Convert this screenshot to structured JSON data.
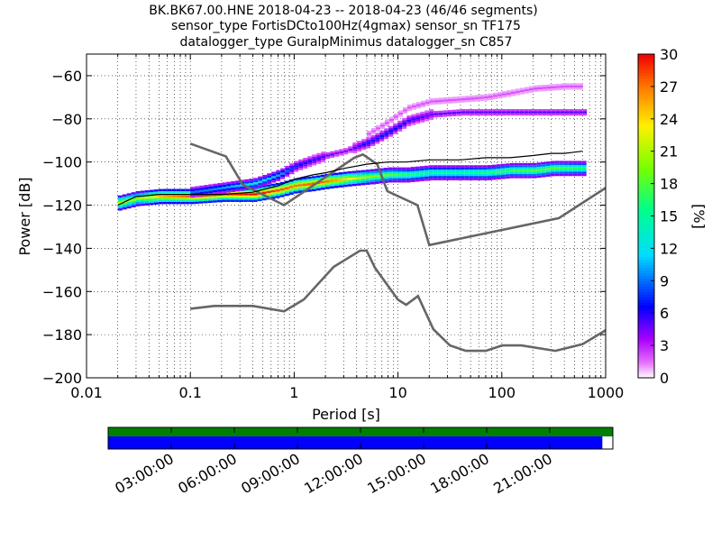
{
  "header": {
    "title_line1": "BK.BK67.00.HNE   2018-04-23 -- 2018-04-23  (46/46 segments)",
    "title_line2": "sensor_type FortisDCto100Hz(4gmax) sensor_sn TF175",
    "title_line3": "datalogger_type GuralpMinimus datalogger_sn C857"
  },
  "chart_data": [
    {
      "type": "heatmap",
      "xlabel": "Period [s]",
      "ylabel": "Power [dB]",
      "x_scale": "log",
      "xlim": [
        0.01,
        1000
      ],
      "ylim": [
        -200,
        -50
      ],
      "x_ticks": [
        0.01,
        0.1,
        1,
        10,
        100,
        1000
      ],
      "x_tick_labels": [
        "0.01",
        "0.1",
        "1",
        "10",
        "100",
        "1000"
      ],
      "y_ticks": [
        -200,
        -180,
        -160,
        -140,
        -120,
        -100,
        -80,
        -60
      ],
      "y_tick_labels": [
        "−200",
        "−180",
        "−160",
        "−140",
        "−120",
        "−100",
        "−80",
        "−60"
      ],
      "grid": true,
      "colorbar": {
        "label": "[%]",
        "range": [
          0,
          30
        ],
        "ticks": [
          0,
          3,
          6,
          9,
          12,
          15,
          18,
          21,
          24,
          27,
          30
        ]
      },
      "noise_model_high": {
        "name": "NHNM",
        "color": "#666666",
        "x": [
          0.1,
          0.22,
          0.32,
          0.8,
          3.8,
          4.6,
          6.3,
          7.9,
          15.4,
          20,
          354.8,
          1000
        ],
        "y": [
          -91.5,
          -97.4,
          -110.5,
          -120,
          -98,
          -96.5,
          -101,
          -113.5,
          -120,
          -138.5,
          -126,
          -112
        ]
      },
      "noise_model_low": {
        "name": "NLNM",
        "color": "#666666",
        "x": [
          0.1,
          0.17,
          0.4,
          0.8,
          1.24,
          2.4,
          4.3,
          5,
          6,
          10,
          12,
          15.6,
          21.9,
          31.6,
          45,
          70,
          101,
          154,
          328,
          600,
          1000
        ],
        "y": [
          -168,
          -166.7,
          -166.7,
          -169.2,
          -163.7,
          -148.6,
          -141.1,
          -141.1,
          -149,
          -163.8,
          -166.2,
          -162.1,
          -177.5,
          -185,
          -187.5,
          -187.5,
          -185,
          -185,
          -187.5,
          -184.4,
          -178
        ]
      },
      "percentile_curve": {
        "color": "#000000",
        "x": [
          0.02,
          0.03,
          0.05,
          0.1,
          0.2,
          0.4,
          0.7,
          1,
          1.5,
          2,
          3,
          5,
          8,
          12,
          20,
          40,
          70,
          120,
          200,
          300,
          400,
          600
        ],
        "y": [
          -120,
          -116,
          -115,
          -115,
          -115,
          -114,
          -111,
          -108,
          -106,
          -105,
          -103,
          -101,
          -100,
          -100,
          -99,
          -99,
          -98,
          -98,
          -97,
          -96,
          -96,
          -95
        ]
      },
      "density_bands": [
        {
          "label": "main",
          "x": [
            0.02,
            0.03,
            0.05,
            0.1,
            0.2,
            0.4,
            0.7,
            1,
            1.5,
            2,
            3,
            5,
            8,
            12,
            20,
            40,
            70,
            120,
            200,
            300,
            400,
            600
          ],
          "y": [
            -119,
            -117,
            -116,
            -116,
            -115,
            -115,
            -113,
            -111,
            -110,
            -109,
            -108,
            -107,
            -106,
            -106,
            -105,
            -105,
            -105,
            -104,
            -104,
            -103,
            -103,
            -103
          ],
          "pct": [
            22,
            20,
            25,
            28,
            29,
            30,
            28,
            27,
            28,
            27,
            24,
            20,
            18,
            16,
            15,
            15,
            16,
            17,
            18,
            18,
            17,
            16
          ]
        },
        {
          "label": "secondary",
          "x": [
            0.1,
            0.2,
            0.4,
            0.7,
            1,
            1.5,
            2,
            3,
            5,
            8,
            12,
            20,
            40,
            70,
            120,
            200,
            400,
            600
          ],
          "y": [
            -114,
            -112,
            -110,
            -106,
            -102,
            -99,
            -97,
            -95,
            -91,
            -86,
            -81,
            -78,
            -77,
            -77,
            -77,
            -77,
            -77,
            -77
          ],
          "pct": [
            9,
            10,
            12,
            10,
            7,
            6,
            5,
            4,
            7,
            7,
            6,
            5,
            5,
            5,
            5,
            5,
            5,
            5
          ]
        },
        {
          "label": "tertiary",
          "x": [
            5,
            8,
            12,
            20,
            40,
            70,
            120,
            200,
            400,
            600
          ],
          "y": [
            -87,
            -81,
            -75,
            -72,
            -71,
            -70,
            -68,
            -66,
            -65,
            -65
          ],
          "pct": [
            2,
            2,
            2,
            2,
            2,
            2,
            2,
            2,
            2,
            2
          ]
        }
      ]
    },
    {
      "type": "timeline",
      "xlim": [
        0,
        24
      ],
      "x_tick_labels": [
        "03:00:00",
        "06:00:00",
        "09:00:00",
        "12:00:00",
        "15:00:00",
        "18:00:00",
        "21:00:00"
      ],
      "x_ticks": [
        3,
        6,
        9,
        12,
        15,
        18,
        21
      ],
      "data_coverage": [
        0,
        24
      ],
      "used_coverage": [
        0,
        23.5
      ],
      "colors": {
        "data": "#008000",
        "used": "#0000ff"
      }
    }
  ]
}
